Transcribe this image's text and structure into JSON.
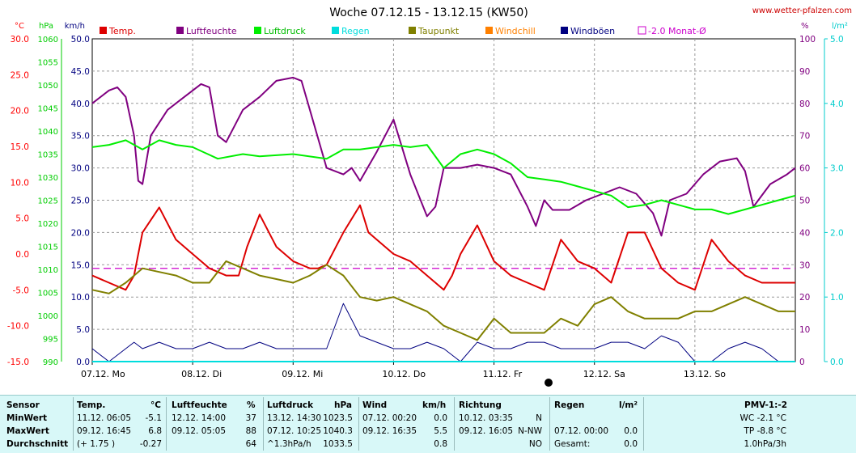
{
  "chart_data": {
    "type": "line",
    "title": "Woche 07.12.15 - 13.12.15 (KW50)",
    "source": "www.wetter-pfalzen.com",
    "x_labels": [
      "07.12. Mo",
      "08.12. Di",
      "09.12. Mi",
      "10.12. Do",
      "11.12. Fr",
      "12.12. Sa",
      "13.12. So"
    ],
    "axes": {
      "temp": {
        "unit": "°C",
        "min": -15,
        "max": 30,
        "ticks": [
          "30.0",
          "25.0",
          "20.0",
          "15.0",
          "10.0",
          "5.0",
          "0.0",
          "-5.0",
          "-10.0",
          "-15.0"
        ],
        "color": "#ff0000"
      },
      "pressure": {
        "unit": "hPa",
        "min": 990,
        "max": 1060,
        "ticks": [
          "1060",
          "1055",
          "1050",
          "1045",
          "1040",
          "1035",
          "1030",
          "1025",
          "1020",
          "1015",
          "1010",
          "1005",
          "1000",
          "995",
          "990"
        ],
        "color": "#00cc00"
      },
      "wind": {
        "unit": "km/h",
        "min": 0,
        "max": 50,
        "ticks": [
          "50.0",
          "45.0",
          "40.0",
          "35.0",
          "30.0",
          "25.0",
          "20.0",
          "15.0",
          "10.0",
          "5.0",
          "0.0"
        ],
        "color": "#000080"
      },
      "humidity": {
        "unit": "%",
        "min": 0,
        "max": 100,
        "ticks": [
          "100",
          "90",
          "80",
          "70",
          "60",
          "50",
          "40",
          "30",
          "20",
          "10",
          "0"
        ],
        "color": "#800080"
      },
      "rain": {
        "unit": "l/m²",
        "min": 0,
        "max": 5,
        "ticks": [
          "5.0",
          "4.0",
          "3.0",
          "2.0",
          "1.0",
          "0.0"
        ],
        "color": "#00cccc"
      }
    },
    "legend": [
      {
        "name": "Temp.",
        "color": "#dd0000"
      },
      {
        "name": "Luftfeuchte",
        "color": "#800080"
      },
      {
        "name": "Luftdruck",
        "color": "#00ee00"
      },
      {
        "name": "Regen",
        "color": "#00dddd"
      },
      {
        "name": "Taupunkt",
        "color": "#808000"
      },
      {
        "name": "Windchill",
        "color": "#ff8000"
      },
      {
        "name": "Windböen",
        "color": "#000080"
      },
      {
        "name": "-2.0 Monat-Ø",
        "color": "#cc00cc"
      }
    ],
    "monthly_avg_temp": -2.0,
    "series": [
      {
        "name": "Temp.",
        "axis": "temp",
        "color": "#dd0000",
        "x": [
          0,
          4,
          8,
          10,
          12,
          16,
          20,
          24,
          28,
          32,
          35,
          37,
          40,
          44,
          48,
          52,
          54,
          56,
          60,
          64,
          66,
          68,
          72,
          76,
          80,
          84,
          86,
          88,
          92,
          96,
          100,
          104,
          108,
          112,
          116,
          120,
          122,
          124,
          128,
          132,
          136,
          140,
          144,
          148,
          152,
          156,
          160,
          164,
          168
        ],
        "y": [
          -3,
          -4,
          -5,
          -3,
          3,
          6.5,
          2,
          0,
          -2,
          -3,
          -3,
          1,
          5.5,
          1,
          -1,
          -2,
          -2,
          -1.5,
          3,
          6.8,
          3,
          2,
          0,
          -1,
          -3,
          -5,
          -3,
          0,
          4,
          -1,
          -3,
          -4,
          -5,
          2,
          -1,
          -2,
          -3,
          -4,
          3,
          3,
          -2,
          -4,
          -5,
          2,
          -1,
          -3,
          -4,
          -4,
          -4
        ]
      },
      {
        "name": "Luftfeuchte",
        "axis": "humidity",
        "color": "#800080",
        "x": [
          0,
          4,
          6,
          8,
          10,
          11,
          12,
          14,
          18,
          22,
          26,
          28,
          30,
          32,
          36,
          40,
          44,
          48,
          50,
          52,
          56,
          60,
          62,
          64,
          68,
          72,
          76,
          80,
          82,
          84,
          88,
          92,
          96,
          100,
          104,
          106,
          108,
          110,
          114,
          118,
          122,
          126,
          130,
          134,
          136,
          138,
          142,
          146,
          150,
          154,
          156,
          158,
          162,
          166,
          168
        ],
        "y": [
          80,
          84,
          85,
          82,
          70,
          56,
          55,
          70,
          78,
          82,
          86,
          85,
          70,
          68,
          78,
          82,
          87,
          88,
          87,
          78,
          60,
          58,
          60,
          56,
          65,
          75,
          58,
          45,
          48,
          60,
          60,
          61,
          60,
          58,
          48,
          42,
          50,
          47,
          47,
          50,
          52,
          54,
          52,
          46,
          39,
          50,
          52,
          58,
          62,
          63,
          59,
          48,
          55,
          58,
          60
        ]
      },
      {
        "name": "Luftdruck",
        "axis": "pressure",
        "color": "#00ee00",
        "x": [
          0,
          4,
          8,
          12,
          16,
          20,
          24,
          30,
          36,
          40,
          48,
          56,
          60,
          64,
          72,
          76,
          80,
          84,
          88,
          92,
          96,
          100,
          104,
          108,
          112,
          116,
          120,
          124,
          128,
          132,
          136,
          140,
          144,
          148,
          152,
          156,
          160,
          164,
          168
        ],
        "y": [
          1036.5,
          1037,
          1038,
          1036,
          1038,
          1037,
          1036.5,
          1034,
          1035,
          1034.5,
          1035,
          1034,
          1036,
          1036,
          1037,
          1036.5,
          1037,
          1032,
          1035,
          1036,
          1035,
          1033,
          1030,
          1029.5,
          1029,
          1028,
          1027,
          1026,
          1023.5,
          1024,
          1025,
          1024,
          1023,
          1023,
          1022,
          1023,
          1024,
          1025,
          1026
        ]
      },
      {
        "name": "Taupunkt",
        "axis": "temp",
        "color": "#808000",
        "x": [
          0,
          4,
          8,
          12,
          16,
          20,
          24,
          28,
          32,
          36,
          40,
          44,
          48,
          52,
          56,
          60,
          64,
          68,
          72,
          76,
          80,
          84,
          88,
          92,
          96,
          100,
          104,
          108,
          112,
          116,
          120,
          124,
          128,
          132,
          136,
          140,
          144,
          148,
          152,
          156,
          160,
          164,
          168
        ],
        "y": [
          -5,
          -5.5,
          -4,
          -2,
          -2.5,
          -3,
          -4,
          -4,
          -1,
          -2,
          -3,
          -3.5,
          -4,
          -3,
          -1.5,
          -3,
          -6,
          -6.5,
          -6,
          -7,
          -8,
          -10,
          -11,
          -12,
          -9,
          -11,
          -11,
          -11,
          -9,
          -10,
          -7,
          -6,
          -8,
          -9,
          -9,
          -9,
          -8,
          -8,
          -7,
          -6,
          -7,
          -8,
          -8
        ]
      },
      {
        "name": "Windböen",
        "axis": "wind",
        "color": "#000080",
        "x": [
          0,
          4,
          8,
          10,
          12,
          16,
          20,
          24,
          28,
          32,
          36,
          40,
          44,
          48,
          52,
          56,
          60,
          64,
          68,
          72,
          76,
          80,
          84,
          88,
          92,
          96,
          100,
          104,
          108,
          112,
          116,
          120,
          124,
          128,
          132,
          136,
          140,
          144,
          148,
          152,
          156,
          160,
          164,
          168
        ],
        "y": [
          2,
          0,
          2,
          3,
          2,
          3,
          2,
          2,
          3,
          2,
          2,
          3,
          2,
          2,
          2,
          2,
          9,
          4,
          3,
          2,
          2,
          3,
          2,
          0,
          3,
          2,
          2,
          3,
          3,
          2,
          2,
          2,
          3,
          3,
          2,
          4,
          3,
          0,
          0,
          2,
          3,
          2,
          0,
          0
        ]
      },
      {
        "name": "Regen",
        "axis": "rain",
        "color": "#00dddd",
        "x": [
          0,
          168
        ],
        "y": [
          0,
          0
        ]
      }
    ]
  },
  "table": {
    "headers": {
      "sensor": "Sensor",
      "temp": "Temp.",
      "temp_unit": "°C",
      "hum": "Luftfeuchte",
      "hum_unit": "%",
      "press": "Luftdruck",
      "press_unit": "hPa",
      "wind": "Wind",
      "wind_unit": "km/h",
      "dir": "Richtung",
      "rain": "Regen",
      "rain_unit": "l/m²",
      "pmv": "PMV-1:-2"
    },
    "rows": [
      {
        "label": "MinWert",
        "temp_time": "11.12.  06:05",
        "temp_val": "-5.1",
        "hum_time": "12.12.  14:00",
        "hum_val": "37",
        "press_time": "13.12.  14:30",
        "press_val": "1023.5",
        "wind_time": "07.12.  00:20",
        "wind_val": "0.0",
        "dir_time": "10.12.  03:35",
        "dir_val": "N",
        "rain_time": "",
        "rain_val": "",
        "pmv": "WC -2.1 °C"
      },
      {
        "label": "MaxWert",
        "temp_time": "09.12.  16:45",
        "temp_val": "6.8",
        "hum_time": "09.12.  05:05",
        "hum_val": "88",
        "press_time": "07.12.  10:25",
        "press_val": "1040.3",
        "wind_time": "09.12.  16:35",
        "wind_val": "5.5",
        "dir_time": "09.12.  16:05",
        "dir_val": "N-NW",
        "rain_time": "07.12.  00:00",
        "rain_val": "0.0",
        "pmv": "TP -8.8 °C"
      },
      {
        "label": "Durchschnitt",
        "temp_time": "(+ 1.75 )",
        "temp_val": "-0.27",
        "hum_time": "",
        "hum_val": "64",
        "press_time": "^1.3hPa/h",
        "press_val": "1033.5",
        "wind_time": "",
        "wind_val": "0.8",
        "dir_time": "",
        "dir_val": "NO",
        "rain_time": "Gesamt:",
        "rain_val": "0.0",
        "pmv": "1.0hPa/3h"
      }
    ]
  }
}
